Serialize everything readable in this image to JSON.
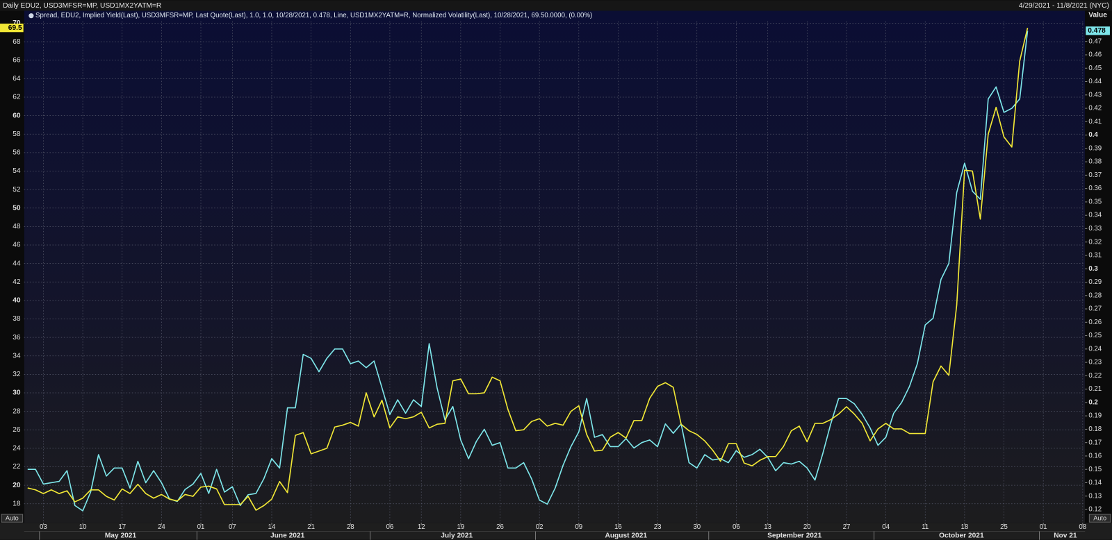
{
  "header": {
    "title": "Daily EDU2, USD3MFSR=MP, USD1MX2YATM=R",
    "date_range": "4/29/2021 - 11/8/2021 (NYC)"
  },
  "controls": {
    "left_auto": "Auto",
    "right_auto": "Auto"
  },
  "chart_data": {
    "type": "line",
    "subtitle": "Spread, EDU2, Implied Yield(Last), USD3MFSR=MP, Last Quote(Last),  1.0, 1.0, 10/28/2021, 0.478, Line, USD1MX2YATM=R, Normalized Volatility(Last),  10/28/2021, 69.50.0000, (0.00%)",
    "y2_label": "Value",
    "grid": true,
    "x": [
      0,
      1,
      2,
      3,
      4,
      5,
      6,
      7,
      8,
      9,
      10,
      11,
      12,
      13,
      14,
      15,
      16,
      17,
      18,
      19,
      20,
      21,
      22,
      23,
      24,
      25,
      26,
      27,
      28,
      29,
      30,
      31,
      32,
      33,
      34,
      35,
      36,
      37,
      38,
      39,
      40,
      41,
      42,
      43,
      44,
      45,
      46,
      47,
      48,
      49,
      50,
      51,
      52,
      53,
      54,
      55,
      56,
      57,
      58,
      59,
      60,
      61,
      62,
      63,
      64,
      65,
      66,
      67,
      68,
      69,
      70,
      71,
      72,
      73,
      74,
      75,
      76,
      77,
      78,
      79,
      80,
      81,
      82,
      83,
      84,
      85,
      86,
      87,
      88,
      89,
      90,
      91,
      92,
      93,
      94,
      95,
      96,
      97,
      98,
      99,
      100,
      101,
      102,
      103,
      104,
      105,
      106,
      107,
      108,
      109,
      110,
      111,
      112,
      113,
      114,
      115,
      116,
      117,
      118,
      119,
      120,
      121,
      122,
      123,
      124,
      125,
      126,
      127
    ],
    "xlim": [
      -0.45,
      134.3
    ],
    "xticks": [
      {
        "value": 2,
        "label": "03"
      },
      {
        "value": 7,
        "label": "10"
      },
      {
        "value": 12,
        "label": "17"
      },
      {
        "value": 17,
        "label": "24"
      },
      {
        "value": 22,
        "label": "01"
      },
      {
        "value": 26,
        "label": "07"
      },
      {
        "value": 31,
        "label": "14"
      },
      {
        "value": 36,
        "label": "21"
      },
      {
        "value": 41,
        "label": "28"
      },
      {
        "value": 46,
        "label": "06"
      },
      {
        "value": 50,
        "label": "12"
      },
      {
        "value": 55,
        "label": "19"
      },
      {
        "value": 60,
        "label": "26"
      },
      {
        "value": 65,
        "label": "02"
      },
      {
        "value": 70,
        "label": "09"
      },
      {
        "value": 75,
        "label": "16"
      },
      {
        "value": 80,
        "label": "23"
      },
      {
        "value": 85,
        "label": "30"
      },
      {
        "value": 90,
        "label": "06"
      },
      {
        "value": 94,
        "label": "13"
      },
      {
        "value": 99,
        "label": "20"
      },
      {
        "value": 104,
        "label": "27"
      },
      {
        "value": 109,
        "label": "04"
      },
      {
        "value": 114,
        "label": "11"
      },
      {
        "value": 119,
        "label": "18"
      },
      {
        "value": 124,
        "label": "25"
      },
      {
        "value": 129,
        "label": "01"
      },
      {
        "value": 134,
        "label": "08"
      }
    ],
    "month_ticks": [
      1.5,
      21.5,
      43.5,
      64.5,
      86.5,
      107.5,
      128.5
    ],
    "month_labels": [
      {
        "value": 11.8,
        "label": "May 2021"
      },
      {
        "value": 33,
        "label": "June 2021"
      },
      {
        "value": 54.5,
        "label": "July 2021"
      },
      {
        "value": 76,
        "label": "August 2021"
      },
      {
        "value": 97.4,
        "label": "September 2021"
      },
      {
        "value": 118.6,
        "label": "October 2021"
      },
      {
        "value": 131.8,
        "label": "Nov 21"
      }
    ],
    "ylim": [
      15.93,
      70.2
    ],
    "yticks": [
      18,
      20,
      22,
      24,
      26,
      28,
      30,
      32,
      34,
      36,
      38,
      40,
      42,
      44,
      46,
      48,
      50,
      52,
      54,
      56,
      58,
      60,
      62,
      64,
      66,
      68,
      70
    ],
    "y2lim": [
      0.11,
      0.485
    ],
    "y2ticks": [
      0.12,
      0.13,
      0.14,
      0.15,
      0.16,
      0.17,
      0.18,
      0.19,
      0.2,
      0.21,
      0.22,
      0.23,
      0.24,
      0.25,
      0.26,
      0.27,
      0.28,
      0.29,
      0.3,
      0.31,
      0.32,
      0.33,
      0.34,
      0.35,
      0.36,
      0.37,
      0.38,
      0.39,
      0.4,
      0.41,
      0.42,
      0.43,
      0.44,
      0.45,
      0.46,
      0.47
    ],
    "series": [
      {
        "color": "#7ee6ea",
        "axis": "y2",
        "last_value_label": "0.478",
        "values": [
          0.15,
          0.15,
          0.139,
          0.14,
          0.141,
          0.149,
          0.123,
          0.119,
          0.133,
          0.161,
          0.145,
          0.151,
          0.151,
          0.136,
          0.156,
          0.14,
          0.149,
          0.14,
          0.128,
          0.126,
          0.135,
          0.139,
          0.147,
          0.132,
          0.15,
          0.133,
          0.137,
          0.123,
          0.131,
          0.132,
          0.143,
          0.158,
          0.151,
          0.196,
          0.196,
          0.236,
          0.233,
          0.223,
          0.233,
          0.24,
          0.24,
          0.229,
          0.231,
          0.226,
          0.231,
          0.211,
          0.191,
          0.202,
          0.192,
          0.202,
          0.197,
          0.244,
          0.211,
          0.187,
          0.197,
          0.172,
          0.158,
          0.171,
          0.18,
          0.168,
          0.17,
          0.151,
          0.151,
          0.155,
          0.143,
          0.127,
          0.124,
          0.136,
          0.153,
          0.167,
          0.178,
          0.203,
          0.174,
          0.176,
          0.167,
          0.167,
          0.173,
          0.166,
          0.17,
          0.172,
          0.167,
          0.184,
          0.177,
          0.184,
          0.155,
          0.151,
          0.161,
          0.157,
          0.158,
          0.155,
          0.164,
          0.159,
          0.161,
          0.165,
          0.159,
          0.149,
          0.155,
          0.154,
          0.156,
          0.151,
          0.142,
          0.162,
          0.184,
          0.203,
          0.203,
          0.199,
          0.191,
          0.181,
          0.168,
          0.174,
          0.192,
          0.2,
          0.212,
          0.229,
          0.258,
          0.263,
          0.292,
          0.304,
          0.357,
          0.379,
          0.358,
          0.352,
          0.427,
          0.436,
          0.417,
          0.42,
          0.427,
          0.478
        ]
      },
      {
        "color": "#f2e836",
        "axis": "y",
        "last_value_label": "69.5",
        "values": [
          19.7,
          19.5,
          19.1,
          19.5,
          19.1,
          19.4,
          18.2,
          18.6,
          19.5,
          19.5,
          18.8,
          18.4,
          19.6,
          19.1,
          20.1,
          19.1,
          18.6,
          19.0,
          18.5,
          18.3,
          19.0,
          18.8,
          19.8,
          19.9,
          19.6,
          17.9,
          17.9,
          17.9,
          18.8,
          17.3,
          17.8,
          18.5,
          20.4,
          19.2,
          25.4,
          25.7,
          23.4,
          23.7,
          24.0,
          26.3,
          26.5,
          26.8,
          26.4,
          30.0,
          27.4,
          29.2,
          26.2,
          27.4,
          27.2,
          27.4,
          27.9,
          26.2,
          26.6,
          26.7,
          31.3,
          31.5,
          29.9,
          29.9,
          30.0,
          31.7,
          31.3,
          28.2,
          25.9,
          26.0,
          26.9,
          27.2,
          26.4,
          26.7,
          26.5,
          28.0,
          28.6,
          25.5,
          23.7,
          23.8,
          25.2,
          25.7,
          25.1,
          27.0,
          27.0,
          29.4,
          30.7,
          31.1,
          30.6,
          26.6,
          25.9,
          25.5,
          24.8,
          23.8,
          22.6,
          24.5,
          24.5,
          22.4,
          22.1,
          22.7,
          23.1,
          23.1,
          24.2,
          25.9,
          26.4,
          24.7,
          26.7,
          26.7,
          27.1,
          27.7,
          28.5,
          27.7,
          26.7,
          24.8,
          26.1,
          26.7,
          26.1,
          26.1,
          25.6,
          25.6,
          25.6,
          31.2,
          32.9,
          31.9,
          39.5,
          54.1,
          54.0,
          48.8,
          58.0,
          60.9,
          57.7,
          56.6,
          65.9,
          69.5
        ]
      }
    ]
  }
}
